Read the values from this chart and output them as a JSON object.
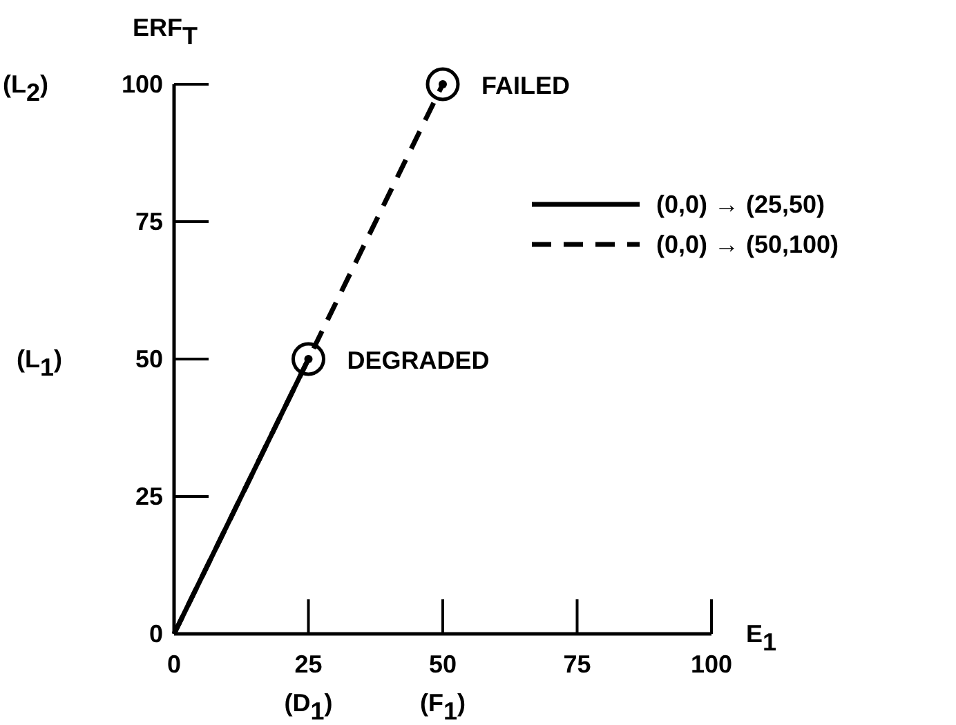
{
  "chart_data": {
    "type": "line",
    "xlabel": "E$_{1}$",
    "ylabel": "ERF$_{T}$",
    "xlim": [
      0,
      100
    ],
    "ylim": [
      0,
      100
    ],
    "xticks": [
      0,
      {
        "value": 25,
        "label": "25\n(D$_{1}$)"
      },
      {
        "value": 50,
        "label": "50\n(F$_{1}$)"
      },
      75,
      100
    ],
    "yticks": [
      0,
      25,
      {
        "value": 50,
        "label": "(L$_{1}$) 50"
      },
      75,
      {
        "value": 100,
        "label": "(L$_{2}$) 100"
      }
    ],
    "series": [
      {
        "name": "(0,0) → (25,50)",
        "color": "#000000",
        "line_style": "solid",
        "x": [
          0,
          25
        ],
        "values": [
          0,
          50
        ]
      },
      {
        "name": "(0,0) → (50,100)",
        "color": "#000000",
        "line_style": "dashed",
        "x": [
          0,
          50
        ],
        "values": [
          0,
          100
        ]
      }
    ],
    "annotations": [
      {
        "text": "DEGRADED",
        "x": 25,
        "y": 50
      },
      {
        "text": "FAILED",
        "x": 50,
        "y": 100
      }
    ],
    "legend": "top right",
    "grid": false
  }
}
